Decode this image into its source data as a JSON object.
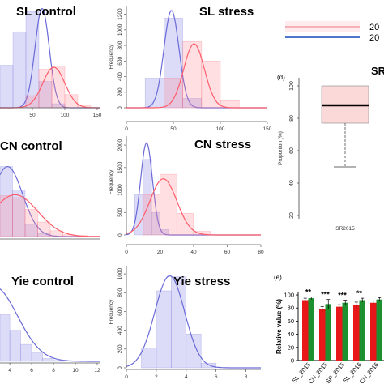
{
  "chart_data": [
    {
      "id": "sl-control",
      "type": "histogram",
      "title": "SL control",
      "xlabel": "",
      "ylabel": "",
      "xticks": [
        50,
        100,
        150
      ],
      "yticks": [],
      "xlim": [
        0,
        155
      ],
      "ylim": [
        0,
        1000
      ],
      "series": [
        {
          "color": "#6a6ad8",
          "fill": "rgba(130,130,230,0.28)",
          "bins": [
            [
              0,
              20,
              420
            ],
            [
              20,
              40,
              750
            ],
            [
              40,
              60,
              950
            ],
            [
              60,
              80,
              260
            ],
            [
              80,
              100,
              40
            ]
          ],
          "curve": {
            "mean": 65,
            "sd": 11,
            "peak": 980
          }
        },
        {
          "color": "#ff5d6a",
          "fill": "rgba(255,140,150,0.28)",
          "bins": [
            [
              40,
              60,
              120
            ],
            [
              60,
              80,
              380
            ],
            [
              80,
              100,
              410
            ],
            [
              100,
              120,
              130
            ],
            [
              120,
              140,
              20
            ]
          ],
          "curve": {
            "mean": 83,
            "sd": 17,
            "peak": 400
          }
        }
      ]
    },
    {
      "id": "sl-stress",
      "type": "histogram",
      "title": "SL stress",
      "xlabel": "",
      "ylabel": "Frequency",
      "xticks": [
        0,
        50,
        100,
        150
      ],
      "yticks": [
        0,
        200,
        400,
        600,
        800,
        1000,
        1200
      ],
      "xlim": [
        0,
        150
      ],
      "ylim": [
        0,
        1300
      ],
      "series": [
        {
          "color": "#6a6ad8",
          "fill": "rgba(130,130,230,0.28)",
          "bins": [
            [
              20,
              40,
              380
            ],
            [
              40,
              60,
              1150
            ],
            [
              60,
              80,
              120
            ]
          ],
          "curve": {
            "mean": 48,
            "sd": 8,
            "peak": 1250
          }
        },
        {
          "color": "#ff5d6a",
          "fill": "rgba(255,140,150,0.28)",
          "bins": [
            [
              40,
              60,
              380
            ],
            [
              60,
              80,
              850
            ],
            [
              80,
              100,
              600
            ],
            [
              100,
              120,
              90
            ]
          ],
          "curve": {
            "mean": 72,
            "sd": 11,
            "peak": 820
          }
        }
      ]
    },
    {
      "id": "cn-control",
      "type": "histogram",
      "title": "CN control",
      "xlabel": "",
      "ylabel": "",
      "xticks": [],
      "yticks": [],
      "xlim": [
        0,
        40
      ],
      "ylim": [
        0,
        1000
      ],
      "series": [
        {
          "color": "#6a6ad8",
          "fill": "rgba(130,130,230,0.28)",
          "bins": [
            [
              0,
              5,
              720
            ],
            [
              5,
              10,
              480
            ],
            [
              10,
              15,
              120
            ],
            [
              15,
              20,
              30
            ]
          ],
          "curve": {
            "mean": 3,
            "sd": 6,
            "peak": 720
          }
        },
        {
          "color": "#ff5d6a",
          "fill": "rgba(255,140,150,0.28)",
          "bins": [
            [
              0,
              5,
              420
            ],
            [
              5,
              10,
              400
            ],
            [
              10,
              15,
              280
            ],
            [
              15,
              20,
              150
            ],
            [
              20,
              25,
              60
            ],
            [
              25,
              30,
              20
            ],
            [
              30,
              35,
              10
            ]
          ],
          "curve": {
            "mean": 6,
            "sd": 9,
            "peak": 430
          }
        }
      ]
    },
    {
      "id": "cn-stress",
      "type": "histogram",
      "title": "CN stress",
      "xlabel": "",
      "ylabel": "Frequency",
      "xticks": [
        0,
        20,
        40,
        60,
        80
      ],
      "yticks": [
        0,
        500,
        1000,
        1500,
        2000
      ],
      "xlim": [
        0,
        80
      ],
      "ylim": [
        0,
        2200
      ],
      "series": [
        {
          "color": "#6a6ad8",
          "fill": "rgba(130,130,230,0.28)",
          "bins": [
            [
              5,
              10,
              900
            ],
            [
              10,
              15,
              1680
            ],
            [
              15,
              20,
              500
            ],
            [
              20,
              25,
              120
            ]
          ],
          "curve": {
            "mean": 12,
            "sd": 3.5,
            "peak": 2050
          }
        },
        {
          "color": "#ff5d6a",
          "fill": "rgba(255,140,150,0.28)",
          "bins": [
            [
              10,
              20,
              900
            ],
            [
              20,
              30,
              1350
            ],
            [
              30,
              40,
              480
            ],
            [
              40,
              50,
              80
            ]
          ],
          "curve": {
            "mean": 22,
            "sd": 8,
            "peak": 1250
          }
        }
      ]
    },
    {
      "id": "yie-control",
      "type": "histogram",
      "title": "Yie control",
      "xlabel": "",
      "ylabel": "",
      "xticks": [
        4,
        6,
        8,
        10,
        12
      ],
      "yticks": [],
      "xlim": [
        3.1,
        12.3
      ],
      "ylim": [
        0,
        1000
      ],
      "series": [
        {
          "color": "#6a6ad8",
          "fill": "rgba(130,130,230,0.28)",
          "bins": [
            [
              2,
              3,
              800
            ],
            [
              3,
              4,
              500
            ],
            [
              4,
              5,
              330
            ],
            [
              5,
              6,
              180
            ],
            [
              6,
              7,
              90
            ],
            [
              7,
              8,
              30
            ],
            [
              8,
              9,
              10
            ]
          ],
          "curve": {
            "mean": 2.5,
            "sd": 2.2,
            "peak": 800
          }
        }
      ]
    },
    {
      "id": "yie-stress",
      "type": "histogram",
      "title": "Yie stress",
      "xlabel": "",
      "ylabel": "Frequency",
      "xticks": [
        0,
        2,
        4,
        6,
        8
      ],
      "yticks": [
        0,
        200,
        400,
        600,
        800,
        1000
      ],
      "xlim": [
        0,
        9
      ],
      "ylim": [
        0,
        1070
      ],
      "series": [
        {
          "color": "#6a6ad8",
          "fill": "rgba(130,130,230,0.28)",
          "bins": [
            [
              1,
              2,
              210
            ],
            [
              2,
              3,
              820
            ],
            [
              3,
              4,
              970
            ],
            [
              4,
              5,
              360
            ],
            [
              5,
              6,
              50
            ]
          ],
          "curve": {
            "mean": 2.9,
            "sd": 1.0,
            "peak": 980
          }
        }
      ]
    },
    {
      "id": "sr-box",
      "type": "box",
      "title": "SR",
      "xlabel": "",
      "ylabel": "Proportion (%)",
      "categories": [
        "SR2015"
      ],
      "yticks": [
        20,
        40,
        60,
        80,
        100
      ],
      "ylim": [
        18,
        105
      ],
      "box": {
        "whisker_low": 50,
        "q1": 77,
        "median": 88,
        "q3": 100,
        "whisker_high": 100
      }
    },
    {
      "id": "relative-value",
      "type": "bar",
      "title": "",
      "xlabel": "",
      "ylabel": "Relative value (%)",
      "yticks": [
        0,
        20,
        40,
        60,
        80,
        100
      ],
      "ylim": [
        0,
        105
      ],
      "categories": [
        "SL_2015",
        "CN_2015",
        "SR_2015",
        "SL_2016",
        "CN_2016"
      ],
      "series": [
        {
          "color": "#e8181a",
          "values": [
            92,
            78,
            82,
            84,
            88
          ],
          "errors": [
            3,
            4,
            3,
            5,
            3
          ]
        },
        {
          "color": "#1d9130",
          "values": [
            95,
            86,
            88,
            92,
            93
          ],
          "errors": [
            2,
            7,
            4,
            3,
            3
          ]
        }
      ],
      "annotations": [
        "**",
        "***",
        "***",
        "**",
        ""
      ]
    }
  ],
  "panel_labels": {
    "d": "(d)",
    "e": "(e)"
  },
  "legend": {
    "entries": [
      {
        "label": "20",
        "color": "#f3a4ad"
      },
      {
        "label": "20",
        "color": "#4d78c9"
      }
    ]
  }
}
